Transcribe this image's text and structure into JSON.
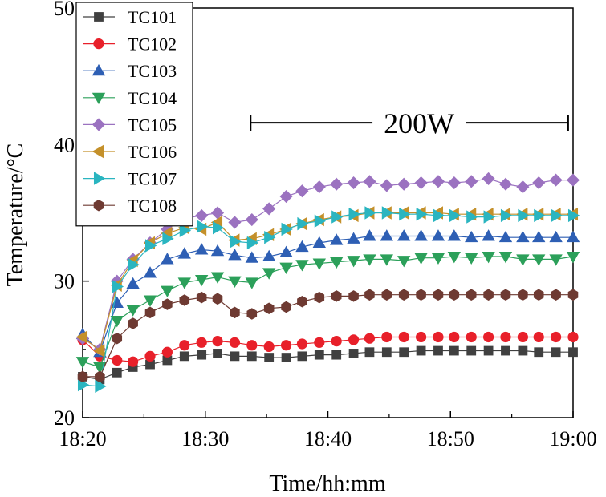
{
  "chart_data": {
    "type": "line",
    "xlabel": "Time/hh:mm",
    "ylabel": "Temperature/°C",
    "xlim": [
      0,
      40
    ],
    "ylim": [
      20,
      50
    ],
    "x_ticks": [
      0,
      10,
      20,
      30,
      40
    ],
    "x_tick_labels": [
      "18:20",
      "18:30",
      "18:40",
      "18:50",
      "19:00"
    ],
    "y_ticks": [
      20,
      30,
      40,
      50
    ],
    "y_tick_labels": [
      "20",
      "30",
      "40",
      "50"
    ],
    "legend_position": "top-left",
    "annotation": {
      "text": "200W",
      "x_start": 13.7,
      "x_end": 39.6,
      "y": 41.6
    },
    "x": [
      0,
      1.4,
      2.8,
      4.1,
      5.5,
      6.9,
      8.3,
      9.7,
      11.0,
      12.4,
      13.8,
      15.2,
      16.6,
      17.9,
      19.3,
      20.7,
      22.1,
      23.4,
      24.8,
      26.2,
      27.6,
      29.0,
      30.3,
      31.7,
      33.1,
      34.5,
      35.9,
      37.2,
      38.6,
      40.0
    ],
    "series": [
      {
        "name": "TC101",
        "color": "#404040",
        "marker": "square",
        "values": [
          23.0,
          22.8,
          23.3,
          23.7,
          23.9,
          24.2,
          24.5,
          24.6,
          24.7,
          24.5,
          24.5,
          24.4,
          24.4,
          24.5,
          24.6,
          24.6,
          24.7,
          24.8,
          24.8,
          24.8,
          24.9,
          24.9,
          24.9,
          24.9,
          24.9,
          24.9,
          24.9,
          24.8,
          24.8,
          24.8
        ]
      },
      {
        "name": "TC102",
        "color": "#e8202a",
        "marker": "circle",
        "values": [
          25.7,
          24.5,
          24.2,
          24.1,
          24.5,
          24.8,
          25.3,
          25.5,
          25.6,
          25.5,
          25.3,
          25.2,
          25.3,
          25.4,
          25.5,
          25.6,
          25.7,
          25.8,
          25.9,
          25.9,
          25.9,
          25.9,
          25.9,
          25.9,
          25.9,
          25.9,
          25.9,
          25.9,
          25.9,
          25.9
        ]
      },
      {
        "name": "TC103",
        "color": "#2e5fb4",
        "marker": "triangle-up",
        "values": [
          26.1,
          24.8,
          28.4,
          29.8,
          30.6,
          31.6,
          32.0,
          32.3,
          32.2,
          31.9,
          31.7,
          31.8,
          32.1,
          32.5,
          32.8,
          33.0,
          33.1,
          33.3,
          33.3,
          33.3,
          33.3,
          33.3,
          33.3,
          33.2,
          33.3,
          33.2,
          33.2,
          33.2,
          33.2,
          33.2
        ]
      },
      {
        "name": "TC104",
        "color": "#2ca05a",
        "marker": "triangle-down",
        "values": [
          24.1,
          23.7,
          27.1,
          27.9,
          28.6,
          29.3,
          29.9,
          30.1,
          30.3,
          30.0,
          29.9,
          30.6,
          31.0,
          31.2,
          31.3,
          31.4,
          31.5,
          31.6,
          31.6,
          31.5,
          31.7,
          31.7,
          31.8,
          31.7,
          31.8,
          31.8,
          31.6,
          31.6,
          31.6,
          31.8
        ]
      },
      {
        "name": "TC105",
        "color": "#9b72c0",
        "marker": "diamond",
        "values": [
          25.8,
          25.0,
          30.0,
          31.6,
          32.8,
          33.8,
          34.6,
          34.8,
          35.0,
          34.3,
          34.5,
          35.3,
          36.2,
          36.6,
          36.9,
          37.1,
          37.2,
          37.3,
          37.0,
          37.1,
          37.2,
          37.3,
          37.2,
          37.3,
          37.5,
          37.1,
          36.9,
          37.2,
          37.4,
          37.4
        ]
      },
      {
        "name": "TC106",
        "color": "#c4902a",
        "marker": "triangle-left",
        "values": [
          25.9,
          24.9,
          29.7,
          31.5,
          32.8,
          33.5,
          33.9,
          33.8,
          34.3,
          33.0,
          33.1,
          33.4,
          33.8,
          34.2,
          34.5,
          34.7,
          34.8,
          35.0,
          35.0,
          35.0,
          35.0,
          35.0,
          34.9,
          34.9,
          34.9,
          34.9,
          34.9,
          34.9,
          34.9,
          34.9
        ]
      },
      {
        "name": "TC107",
        "color": "#2ab5c0",
        "marker": "triangle-right",
        "values": [
          22.4,
          22.3,
          29.6,
          31.2,
          32.6,
          33.1,
          33.7,
          34.0,
          33.9,
          32.9,
          32.8,
          33.2,
          33.8,
          34.2,
          34.4,
          34.7,
          34.9,
          35.0,
          35.0,
          34.9,
          34.9,
          34.8,
          34.8,
          34.7,
          34.7,
          34.8,
          34.8,
          34.8,
          34.8,
          34.8
        ]
      },
      {
        "name": "TC108",
        "color": "#6e3a32",
        "marker": "hexagon",
        "values": [
          23.0,
          23.0,
          25.8,
          26.9,
          27.7,
          28.3,
          28.6,
          28.8,
          28.7,
          27.7,
          27.6,
          28.0,
          28.1,
          28.5,
          28.8,
          28.9,
          28.9,
          29.0,
          29.0,
          29.0,
          29.0,
          29.0,
          29.0,
          29.0,
          29.0,
          29.0,
          29.0,
          29.0,
          29.0,
          29.0
        ]
      }
    ]
  }
}
